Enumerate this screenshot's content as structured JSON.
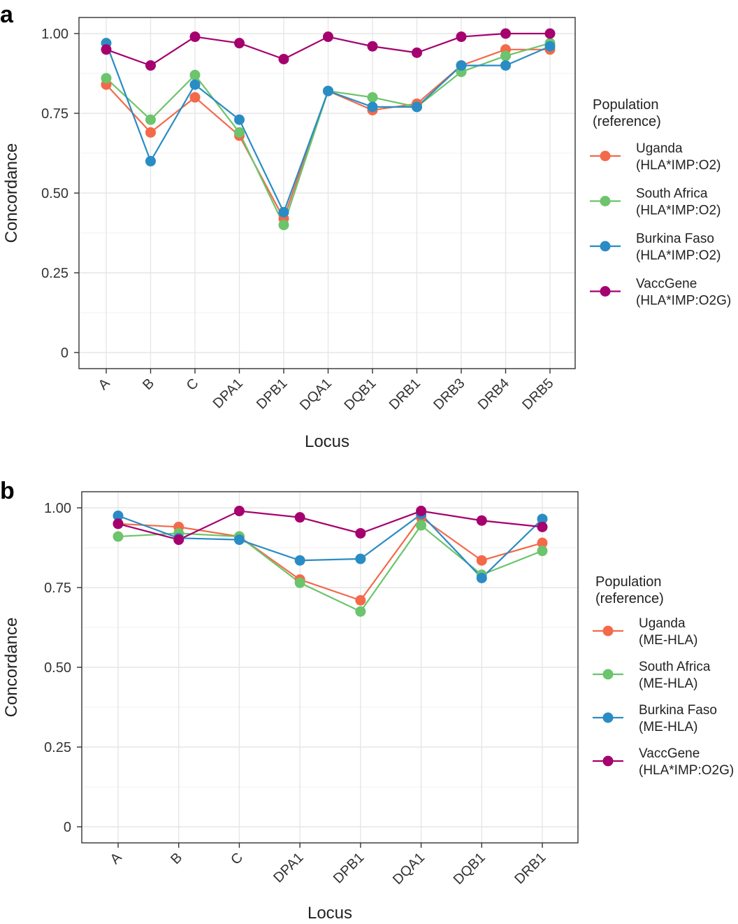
{
  "chart_data": [
    {
      "panel": "a",
      "type": "line",
      "xlabel": "Locus",
      "ylabel": "Concordance",
      "ylim": [
        0,
        1
      ],
      "yticks": [
        "0",
        "0.25",
        "0.50",
        "0.75",
        "1.00"
      ],
      "categories": [
        "A",
        "B",
        "C",
        "DPA1",
        "DPB1",
        "DQA1",
        "DQB1",
        "DRB1",
        "DRB3",
        "DRB4",
        "DRB5"
      ],
      "legend_title": [
        "Population",
        "(reference)"
      ],
      "series": [
        {
          "name": "Uganda",
          "reference": "(HLA*IMP:O2)",
          "color": "#F4694A",
          "values": [
            0.84,
            0.69,
            0.8,
            0.68,
            0.42,
            0.82,
            0.76,
            0.78,
            0.9,
            0.95,
            0.95
          ]
        },
        {
          "name": "South Africa",
          "reference": "(HLA*IMP:O2)",
          "color": "#6CC46C",
          "values": [
            0.86,
            0.73,
            0.87,
            0.69,
            0.4,
            0.82,
            0.8,
            0.77,
            0.88,
            0.93,
            0.97
          ]
        },
        {
          "name": "Burkina Faso",
          "reference": "(HLA*IMP:O2)",
          "color": "#2A8CC4",
          "values": [
            0.97,
            0.6,
            0.84,
            0.73,
            0.44,
            0.82,
            0.77,
            0.77,
            0.9,
            0.9,
            0.96
          ]
        },
        {
          "name": "VaccGene",
          "reference": "(HLA*IMP:O2G)",
          "color": "#A5006E",
          "values": [
            0.95,
            0.9,
            0.99,
            0.97,
            0.92,
            0.99,
            0.96,
            0.94,
            0.99,
            1.0,
            1.0
          ]
        }
      ]
    },
    {
      "panel": "b",
      "type": "line",
      "xlabel": "Locus",
      "ylabel": "Concordance",
      "ylim": [
        0,
        1
      ],
      "yticks": [
        "0",
        "0.25",
        "0.50",
        "0.75",
        "1.00"
      ],
      "categories": [
        "A",
        "B",
        "C",
        "DPA1",
        "DPB1",
        "DQA1",
        "DQB1",
        "DRB1"
      ],
      "legend_title": [
        "Population",
        "(reference)"
      ],
      "series": [
        {
          "name": "Uganda",
          "reference": "(ME-HLA)",
          "color": "#F4694A",
          "values": [
            0.95,
            0.94,
            0.91,
            0.775,
            0.71,
            0.97,
            0.835,
            0.89
          ]
        },
        {
          "name": "South Africa",
          "reference": "(ME-HLA)",
          "color": "#6CC46C",
          "values": [
            0.91,
            0.92,
            0.91,
            0.765,
            0.675,
            0.945,
            0.79,
            0.865
          ]
        },
        {
          "name": "Burkina Faso",
          "reference": "(ME-HLA)",
          "color": "#2A8CC4",
          "values": [
            0.975,
            0.905,
            0.9,
            0.835,
            0.84,
            0.98,
            0.78,
            0.965
          ]
        },
        {
          "name": "VaccGene",
          "reference": "(HLA*IMP:O2G)",
          "color": "#A5006E",
          "values": [
            0.95,
            0.9,
            0.99,
            0.97,
            0.92,
            0.99,
            0.96,
            0.94
          ]
        }
      ]
    }
  ]
}
